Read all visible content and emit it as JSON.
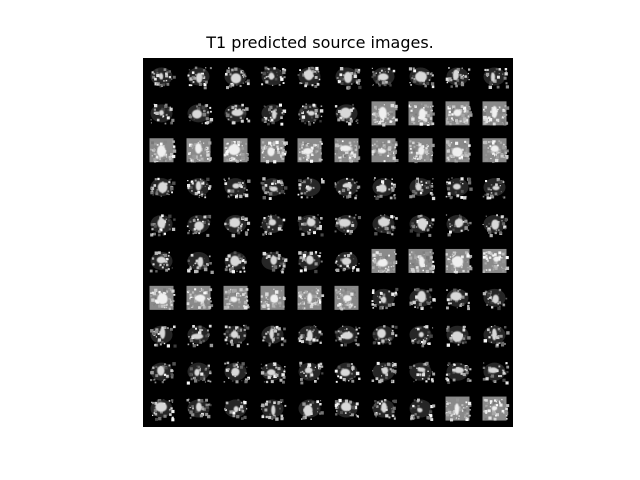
{
  "figure": {
    "title": "T1 predicted source images."
  },
  "grid": {
    "rows": 10,
    "cols": 10,
    "background_color": "#000000"
  }
}
